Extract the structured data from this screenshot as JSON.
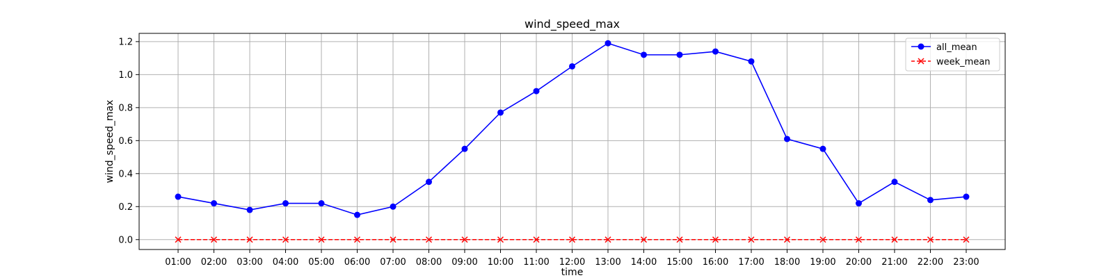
{
  "chart_data": {
    "type": "line",
    "title": "wind_speed_max",
    "xlabel": "time",
    "ylabel": "wind_speed_max",
    "categories": [
      "01:00",
      "02:00",
      "03:00",
      "04:00",
      "05:00",
      "06:00",
      "07:00",
      "08:00",
      "09:00",
      "10:00",
      "11:00",
      "12:00",
      "13:00",
      "14:00",
      "15:00",
      "16:00",
      "17:00",
      "18:00",
      "19:00",
      "20:00",
      "21:00",
      "22:00",
      "23:00"
    ],
    "ylim": [
      -0.06,
      1.25
    ],
    "yticks": [
      0.0,
      0.2,
      0.4,
      0.6,
      0.8,
      1.0,
      1.2
    ],
    "ytick_labels": [
      "0.0",
      "0.2",
      "0.4",
      "0.6",
      "0.8",
      "1.0",
      "1.2"
    ],
    "grid": true,
    "legend_position": "top-right",
    "series": [
      {
        "name": "all_mean",
        "color": "#0000ff",
        "line_style": "solid",
        "marker": "circle",
        "values": [
          0.26,
          0.22,
          0.18,
          0.22,
          0.22,
          0.15,
          0.2,
          0.35,
          0.55,
          0.77,
          0.9,
          1.05,
          1.19,
          1.12,
          1.12,
          1.14,
          1.08,
          0.61,
          0.55,
          0.22,
          0.35,
          0.24,
          0.26
        ]
      },
      {
        "name": "week_mean",
        "color": "#ff0000",
        "line_style": "dashed",
        "marker": "x",
        "values": [
          0,
          0,
          0,
          0,
          0,
          0,
          0,
          0,
          0,
          0,
          0,
          0,
          0,
          0,
          0,
          0,
          0,
          0,
          0,
          0,
          0,
          0,
          0
        ]
      }
    ]
  }
}
